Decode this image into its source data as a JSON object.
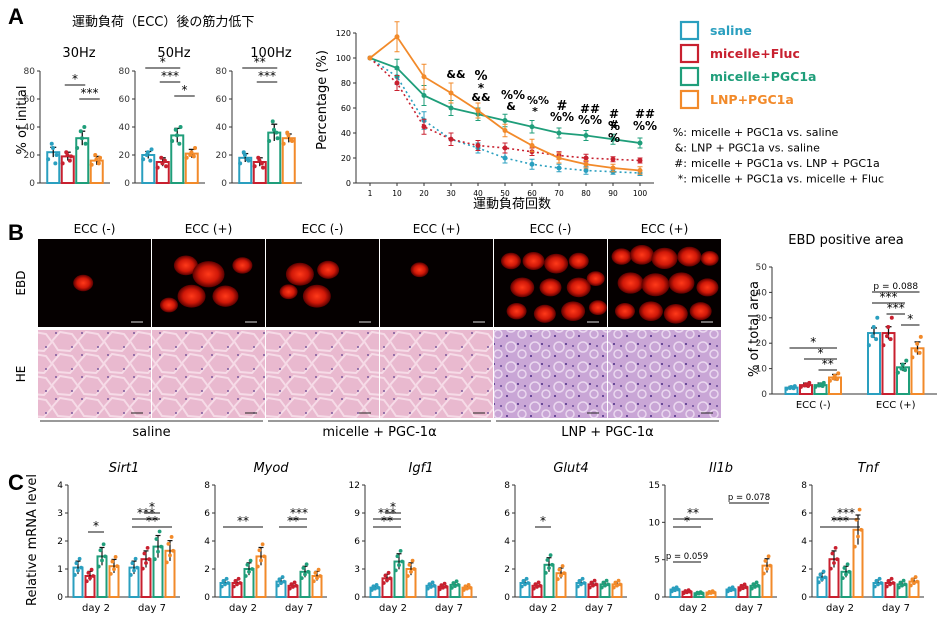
{
  "colors": {
    "saline": "#2a9fbf",
    "fluc": "#c8202f",
    "pgc1a": "#1f9e7a",
    "lnp": "#f28a2a",
    "axis": "#333333",
    "sig": "#1a1a1a"
  },
  "panel_a": {
    "letter": "A",
    "title": "運動負荷（ECC）後の筋力低下",
    "ylabel": "% of initial",
    "subplots": [
      {
        "title": "30Hz",
        "values": [
          22,
          19,
          32,
          16
        ],
        "err": [
          3.5,
          3,
          5,
          3
        ],
        "pts": [
          [
            17,
            25,
            28,
            20,
            14
          ],
          [
            14,
            20,
            22,
            19,
            16
          ],
          [
            25,
            32,
            37,
            28,
            40
          ],
          [
            13,
            17,
            20,
            18,
            14
          ]
        ],
        "sig": [
          {
            "label": "*",
            "from": 1,
            "to": 2
          },
          {
            "label": "***",
            "from": 2,
            "to": 3
          }
        ]
      },
      {
        "title": "50Hz",
        "values": [
          20,
          15,
          34,
          21
        ],
        "err": [
          2.5,
          3,
          5,
          3
        ],
        "pts": [
          [
            17,
            22,
            20,
            24,
            16
          ],
          [
            11,
            14,
            18,
            12,
            16
          ],
          [
            30,
            34,
            38,
            40,
            28
          ],
          [
            18,
            22,
            20,
            25,
            19
          ]
        ],
        "sig": [
          {
            "label": "*",
            "from": 0,
            "to": 2
          },
          {
            "label": "***",
            "from": 1,
            "to": 2
          },
          {
            "label": "*",
            "from": 2,
            "to": 3
          }
        ]
      },
      {
        "title": "100Hz",
        "values": [
          18,
          15,
          36,
          32
        ],
        "err": [
          3,
          3,
          6,
          3
        ],
        "pts": [
          [
            14,
            20,
            22,
            16,
            17
          ],
          [
            12,
            16,
            18,
            11,
            14
          ],
          [
            30,
            38,
            44,
            32,
            36
          ],
          [
            28,
            34,
            36,
            30,
            31
          ]
        ],
        "sig": [
          {
            "label": "**",
            "from": 0,
            "to": 2
          },
          {
            "label": "***",
            "from": 1,
            "to": 2
          }
        ]
      }
    ],
    "yticks": [
      "0",
      "20",
      "40",
      "60",
      "80"
    ]
  },
  "line_chart": {
    "ylabel": "Percentage (%)",
    "xlabel": "運動負荷回数",
    "x": [
      1,
      10,
      20,
      30,
      40,
      50,
      60,
      70,
      80,
      90,
      100
    ],
    "xlabels": [
      "1",
      "10",
      "20",
      "30",
      "40",
      "50",
      "60",
      "70",
      "80",
      "90",
      "100"
    ],
    "yticks": [
      "0",
      "20",
      "40",
      "60",
      "80",
      "100",
      "120"
    ],
    "series": [
      {
        "key": "saline",
        "values": [
          100,
          85,
          50,
          35,
          28,
          20,
          15,
          12,
          10,
          9,
          8
        ],
        "err": [
          0,
          6,
          7,
          5,
          4,
          4,
          4,
          3,
          3,
          2,
          2
        ],
        "dotted": true
      },
      {
        "key": "fluc",
        "values": [
          100,
          80,
          45,
          35,
          30,
          28,
          25,
          22,
          20,
          19,
          18
        ],
        "err": [
          0,
          6,
          6,
          5,
          4,
          4,
          3,
          3,
          3,
          2,
          2
        ],
        "dotted": true
      },
      {
        "key": "pgc1a",
        "values": [
          100,
          92,
          70,
          60,
          55,
          50,
          45,
          40,
          38,
          35,
          32
        ],
        "err": [
          0,
          7,
          8,
          6,
          5,
          5,
          5,
          4,
          4,
          4,
          4
        ],
        "dotted": false
      },
      {
        "key": "lnp",
        "values": [
          100,
          117,
          85,
          72,
          58,
          42,
          30,
          20,
          15,
          12,
          10
        ],
        "err": [
          0,
          12,
          10,
          8,
          6,
          5,
          5,
          4,
          3,
          3,
          3
        ],
        "dotted": false
      }
    ],
    "annotations": [
      "&&",
      "%",
      "*",
      "&&",
      "%%",
      "&",
      "%%",
      "*",
      "#",
      "%%",
      "##",
      "%%",
      "#",
      "%",
      "##",
      "%%",
      "#",
      "%"
    ]
  },
  "legend": {
    "items": [
      {
        "key": "saline",
        "label": "saline"
      },
      {
        "key": "fluc",
        "label": "micelle+Fluc"
      },
      {
        "key": "pgc1a",
        "label": "micelle+PGC1a"
      },
      {
        "key": "lnp",
        "label": "LNP+PGC1a"
      }
    ],
    "notes": [
      {
        "sym": "%:",
        "text": "micelle + PGC1a vs. saline"
      },
      {
        "sym": "&:",
        "text": "LNP + PGC1a vs. saline"
      },
      {
        "sym": "#:",
        "text": "micelle + PGC1a vs. LNP + PGC1a"
      },
      {
        "sym": "*:",
        "text": "micelle + PGC1a vs. micelle + Fluc"
      }
    ]
  },
  "panel_b": {
    "letter": "B",
    "col_labels": [
      "ECC (-)",
      "ECC (+)",
      "ECC (-)",
      "ECC (+)",
      "ECC (-)",
      "ECC (+)"
    ],
    "row_labels": [
      "EBD",
      "HE"
    ],
    "group_labels": [
      "saline",
      "micelle + PGC-1α",
      "LNP + PGC-1α"
    ],
    "bar_title": "EBD positive area",
    "bar_ylabel": "% of total area",
    "bar_yticks": [
      "0",
      "10",
      "20",
      "30",
      "40",
      "50"
    ],
    "bar_groups": [
      "ECC (-)",
      "ECC (+)"
    ],
    "bar_values": [
      [
        2.5,
        3.5,
        3.5,
        6.5
      ],
      [
        24,
        24,
        10.5,
        18
      ]
    ],
    "bar_err": [
      [
        0.5,
        0.8,
        0.8,
        1.2
      ],
      [
        2,
        2.5,
        1.5,
        2.5
      ]
    ],
    "p_label": "p = 0.088",
    "sig_minus": [
      "*",
      "*",
      "**"
    ],
    "sig_plus": [
      "***",
      "***",
      "*"
    ]
  },
  "panel_c": {
    "letter": "C",
    "ylabel": "Relative mRNA level",
    "xgroups": [
      "day 2",
      "day 7"
    ],
    "genes": [
      {
        "name": "Sirt1",
        "yticks": [
          "0",
          "1",
          "2",
          "3",
          "4"
        ],
        "ymax": 4,
        "values": [
          [
            1.05,
            0.75,
            1.45,
            1.1
          ],
          [
            1.05,
            1.35,
            1.8,
            1.65
          ]
        ],
        "sig": [
          {
            "label": "*",
            "g": 0,
            "from": 1,
            "to": 2
          },
          {
            "label": "**",
            "g": 1,
            "from": 0,
            "to": 3
          },
          {
            "label": "***",
            "g": 1,
            "from": 0,
            "to": 2
          },
          {
            "label": "*",
            "g": 1,
            "from": 1,
            "to": 2
          }
        ]
      },
      {
        "name": "Myod",
        "yticks": [
          "0",
          "2",
          "4",
          "6",
          "8"
        ],
        "ymax": 8,
        "values": [
          [
            1.0,
            1.0,
            2.0,
            2.9
          ],
          [
            1.1,
            0.8,
            1.8,
            1.5
          ]
        ],
        "sig": [
          {
            "label": "**",
            "g": 0,
            "from": 0,
            "to": 3
          },
          {
            "label": "**",
            "g": 1,
            "from": 0,
            "to": 2
          },
          {
            "label": "***",
            "g": 1,
            "from": 1,
            "to": 2
          }
        ]
      },
      {
        "name": "Igf1",
        "yticks": [
          "0",
          "3",
          "6",
          "9",
          "12"
        ],
        "ymax": 12,
        "values": [
          [
            1.0,
            2.0,
            3.8,
            3.0
          ],
          [
            1.2,
            1.1,
            1.3,
            1.0
          ]
        ],
        "sig": [
          {
            "label": "**",
            "g": 0,
            "from": 0,
            "to": 2
          },
          {
            "label": "***",
            "g": 0,
            "from": 0,
            "to": 2
          },
          {
            "label": "*",
            "g": 0,
            "from": 1,
            "to": 2
          }
        ]
      },
      {
        "name": "Glut4",
        "yticks": [
          "0",
          "2",
          "4",
          "6",
          "8"
        ],
        "ymax": 8,
        "values": [
          [
            1.0,
            0.8,
            2.3,
            1.7
          ],
          [
            1.0,
            0.9,
            0.9,
            0.9
          ]
        ],
        "sig": [
          {
            "label": "*",
            "g": 0,
            "from": 1,
            "to": 2
          }
        ]
      },
      {
        "name": "Il1b",
        "yticks": [
          "0",
          "5",
          "10",
          "15"
        ],
        "ymax": 15,
        "values": [
          [
            1.0,
            0.7,
            0.5,
            0.6
          ],
          [
            1.0,
            1.3,
            1.5,
            4.2
          ]
        ],
        "p1": "p = 0.059",
        "p2": "p = 0.078",
        "sig": [
          {
            "label": "*",
            "g": 0,
            "from": 0,
            "to": 2
          },
          {
            "label": "**",
            "g": 0,
            "from": 0,
            "to": 3
          }
        ]
      },
      {
        "name": "Tnf",
        "yticks": [
          "0",
          "2",
          "4",
          "6",
          "8"
        ],
        "ymax": 8,
        "values": [
          [
            1.4,
            2.7,
            1.8,
            4.8
          ],
          [
            1.0,
            1.0,
            0.9,
            1.1
          ]
        ],
        "sig": [
          {
            "label": "***",
            "g": 0,
            "from": 0,
            "to": 3
          },
          {
            "label": "***",
            "g": 0,
            "from": 1,
            "to": 3
          }
        ]
      }
    ]
  }
}
